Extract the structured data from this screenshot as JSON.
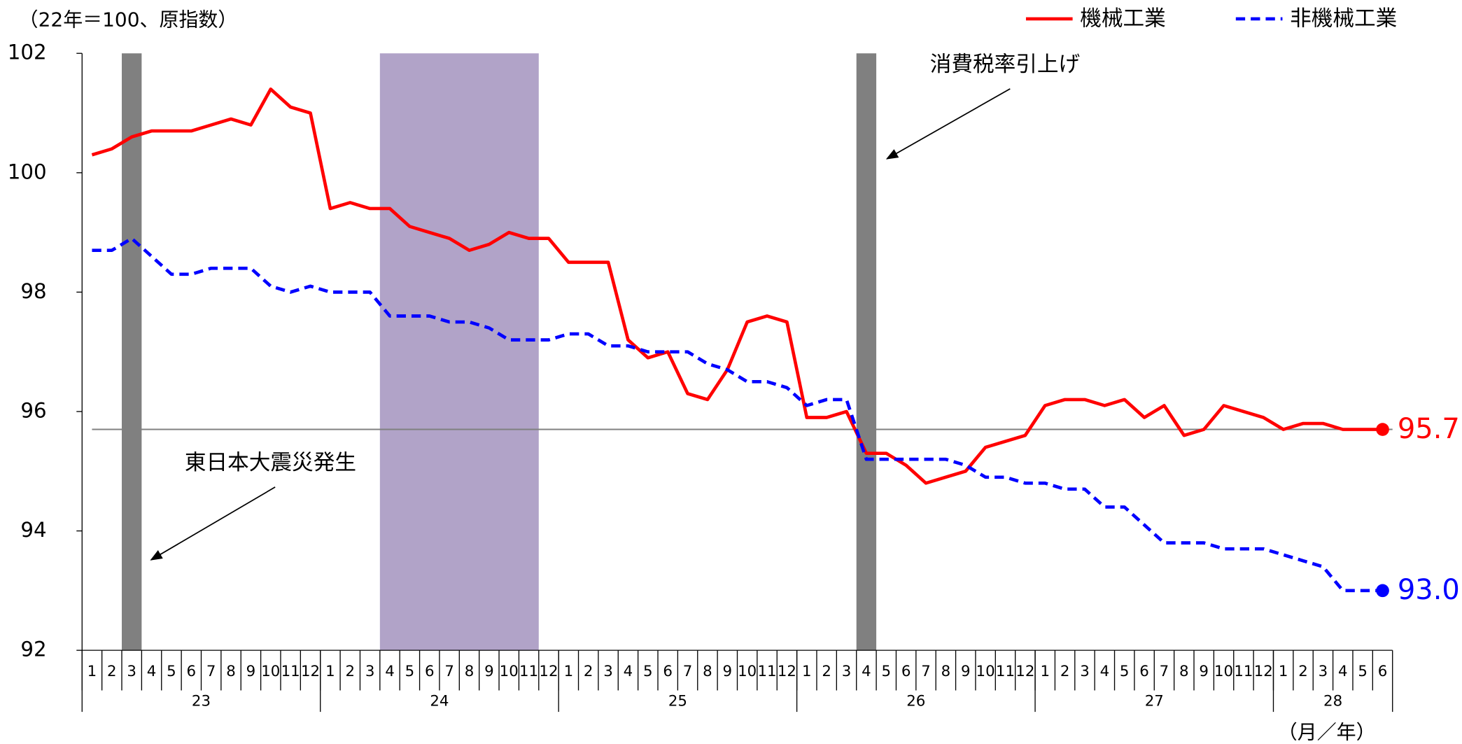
{
  "chart_data": {
    "type": "line",
    "y_axis_label": "（22年＝100、原指数）",
    "x_axis_label": "（月／年）",
    "categories": [
      "1",
      "2",
      "3",
      "4",
      "5",
      "6",
      "7",
      "8",
      "9",
      "10",
      "11",
      "12",
      "1",
      "2",
      "3",
      "4",
      "5",
      "6",
      "7",
      "8",
      "9",
      "10",
      "11",
      "12",
      "1",
      "2",
      "3",
      "4",
      "5",
      "6",
      "7",
      "8",
      "9",
      "10",
      "11",
      "12",
      "1",
      "2",
      "3",
      "4",
      "5",
      "6",
      "7",
      "8",
      "9",
      "10",
      "11",
      "12",
      "1",
      "2",
      "3",
      "4",
      "5",
      "6",
      "7",
      "8",
      "9",
      "10",
      "11",
      "12",
      "1",
      "2",
      "3",
      "4",
      "5",
      "6"
    ],
    "year_groups": [
      {
        "label": "23",
        "months": 12
      },
      {
        "label": "24",
        "months": 12
      },
      {
        "label": "25",
        "months": 12
      },
      {
        "label": "26",
        "months": 12
      },
      {
        "label": "27",
        "months": 12
      },
      {
        "label": "28",
        "months": 6
      }
    ],
    "series": [
      {
        "name": "機械工業",
        "color": "#ff0000",
        "dashed": false,
        "values": [
          100.3,
          100.4,
          100.6,
          100.7,
          100.7,
          100.7,
          100.8,
          100.9,
          100.8,
          101.4,
          101.1,
          101.0,
          99.4,
          99.5,
          99.4,
          99.4,
          99.1,
          99.0,
          98.9,
          98.7,
          98.8,
          99.0,
          98.9,
          98.9,
          98.5,
          98.5,
          98.5,
          97.2,
          96.9,
          97.0,
          96.3,
          96.2,
          96.7,
          97.5,
          97.6,
          97.5,
          95.9,
          95.9,
          96.0,
          95.3,
          95.3,
          95.1,
          94.8,
          94.9,
          95.0,
          95.4,
          95.5,
          95.6,
          96.1,
          96.2,
          96.2,
          96.1,
          96.2,
          95.9,
          96.1,
          95.6,
          95.7,
          96.1,
          96.0,
          95.9,
          95.7,
          95.8,
          95.8,
          95.7,
          95.7,
          95.7
        ],
        "value_labels": [
          null,
          null,
          null,
          null,
          null,
          null,
          null,
          null,
          null,
          null,
          null,
          null,
          null,
          null,
          null,
          null,
          null,
          null,
          null,
          null,
          null,
          null,
          null,
          null,
          null,
          null,
          null,
          null,
          null,
          null,
          null,
          null,
          null,
          null,
          null,
          null,
          null,
          null,
          null,
          null,
          null,
          null,
          null,
          null,
          null,
          null,
          null,
          null,
          null,
          null,
          null,
          null,
          null,
          null,
          null,
          null,
          null,
          null,
          null,
          null,
          null,
          null,
          null,
          null,
          null,
          "95.7"
        ]
      },
      {
        "name": "非機械工業",
        "color": "#0000ff",
        "dashed": true,
        "values": [
          98.7,
          98.7,
          98.9,
          98.6,
          98.3,
          98.3,
          98.4,
          98.4,
          98.4,
          98.1,
          98.0,
          98.1,
          98.0,
          98.0,
          98.0,
          97.6,
          97.6,
          97.6,
          97.5,
          97.5,
          97.4,
          97.2,
          97.2,
          97.2,
          97.3,
          97.3,
          97.1,
          97.1,
          97.0,
          97.0,
          97.0,
          96.8,
          96.7,
          96.5,
          96.5,
          96.4,
          96.1,
          96.2,
          96.2,
          95.2,
          95.2,
          95.2,
          95.2,
          95.2,
          95.1,
          94.9,
          94.9,
          94.8,
          94.8,
          94.7,
          94.7,
          94.4,
          94.4,
          94.1,
          93.8,
          93.8,
          93.8,
          93.7,
          93.7,
          93.7,
          93.6,
          93.5,
          93.4,
          93.0,
          93.0,
          93.0
        ],
        "value_labels": [
          null,
          null,
          null,
          null,
          null,
          null,
          null,
          null,
          null,
          null,
          null,
          null,
          null,
          null,
          null,
          null,
          null,
          null,
          null,
          null,
          null,
          null,
          null,
          null,
          null,
          null,
          null,
          null,
          null,
          null,
          null,
          null,
          null,
          null,
          null,
          null,
          null,
          null,
          null,
          null,
          null,
          null,
          null,
          null,
          null,
          null,
          null,
          null,
          null,
          null,
          null,
          null,
          null,
          null,
          null,
          null,
          null,
          null,
          null,
          null,
          null,
          null,
          null,
          null,
          null,
          "93.0"
        ]
      }
    ],
    "reference_line": 95.7,
    "shaded_periods": [
      {
        "start": 2,
        "end": 2,
        "color": "#808080"
      },
      {
        "start": 15,
        "end": 22,
        "color": "#b1a3c8"
      },
      {
        "start": 39,
        "end": 39,
        "color": "#808080"
      }
    ],
    "annotations": [
      {
        "text": "東日本大震災発生"
      },
      {
        "text": "消費税率引上げ"
      }
    ],
    "ylim": [
      92,
      102
    ],
    "yticks": [
      92,
      94,
      96,
      98,
      100,
      102
    ]
  }
}
